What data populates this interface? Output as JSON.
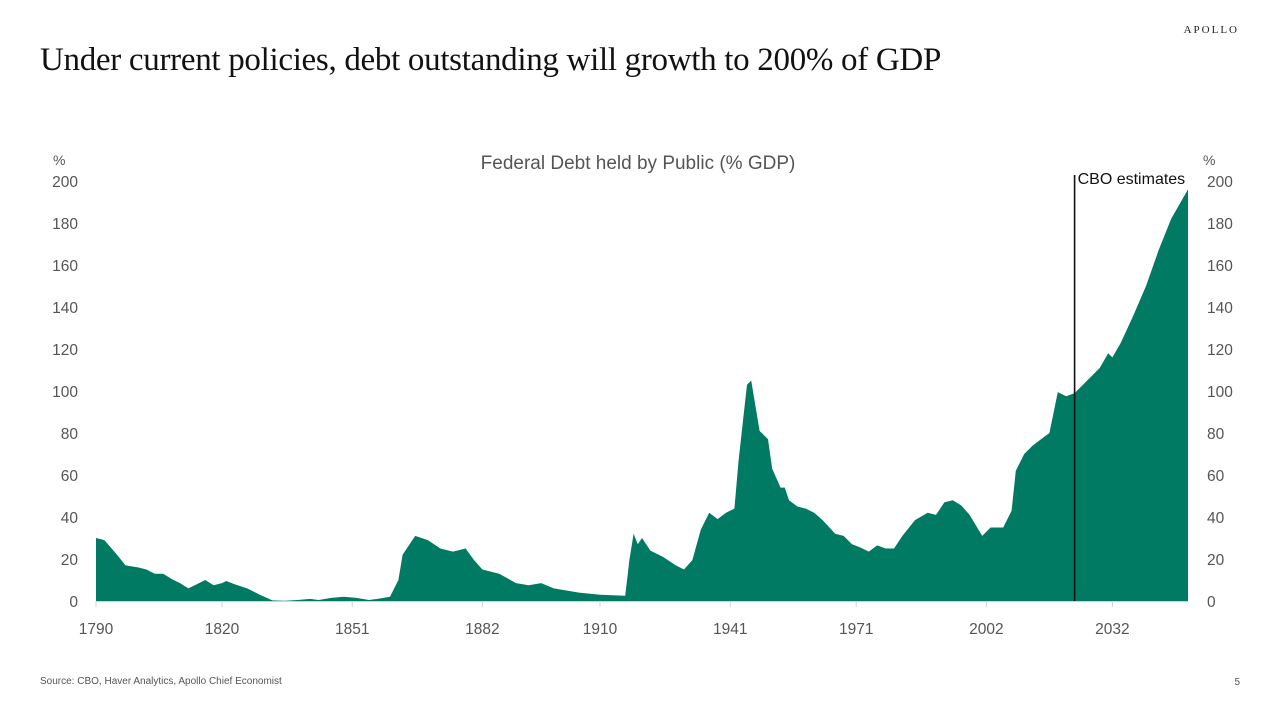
{
  "header": {
    "logo": "APOLLO",
    "title": "Under current policies, debt outstanding will growth to 200% of GDP"
  },
  "footer": {
    "source": "Source: CBO, Haver Analytics, Apollo Chief Economist",
    "page_number": "5"
  },
  "colors": {
    "area_fill": "#007A63",
    "annotation_line": "#111111"
  },
  "chart_data": {
    "type": "area",
    "title": "Federal Debt held by Public (% GDP)",
    "xlabel": "",
    "ylabel": "%",
    "ylabel_right": "%",
    "xlim": [
      1790,
      2050
    ],
    "ylim": [
      0,
      200
    ],
    "x_ticks": [
      1790,
      1820,
      1851,
      1882,
      1910,
      1941,
      1971,
      2002,
      2032
    ],
    "x_tick_labels": [
      "1790",
      "1820",
      "1851",
      "1882",
      "1910",
      "1941",
      "1971",
      "2002",
      "2032"
    ],
    "y_ticks": [
      0,
      20,
      40,
      60,
      80,
      100,
      120,
      140,
      160,
      180,
      200
    ],
    "y_tick_labels": [
      "0",
      "20",
      "40",
      "60",
      "80",
      "100",
      "120",
      "140",
      "160",
      "180",
      "200"
    ],
    "grid": false,
    "legend": "none",
    "annotations": [
      {
        "type": "vline",
        "x": 2023,
        "label": "CBO estimates"
      }
    ],
    "series": [
      {
        "name": "Federal Debt held by Public (% GDP)",
        "x": [
          1790,
          1792,
          1795,
          1797,
          1800,
          1802,
          1804,
          1806,
          1808,
          1810,
          1812,
          1814,
          1816,
          1818,
          1820,
          1821,
          1823,
          1826,
          1829,
          1832,
          1835,
          1838,
          1841,
          1843,
          1846,
          1849,
          1852,
          1855,
          1857,
          1860,
          1862,
          1863,
          1866,
          1869,
          1872,
          1875,
          1878,
          1880,
          1882,
          1886,
          1890,
          1893,
          1896,
          1899,
          1905,
          1910,
          1916,
          1917,
          1918,
          1919,
          1920,
          1922,
          1925,
          1928,
          1930,
          1932,
          1934,
          1936,
          1938,
          1940,
          1942,
          1943,
          1945,
          1946,
          1948,
          1950,
          1951,
          1953,
          1954,
          1955,
          1957,
          1959,
          1961,
          1963,
          1966,
          1968,
          1970,
          1972,
          1974,
          1976,
          1978,
          1980,
          1982,
          1985,
          1988,
          1990,
          1992,
          1994,
          1996,
          1998,
          2001,
          2003,
          2006,
          2008,
          2009,
          2011,
          2013,
          2015,
          2017,
          2019,
          2021,
          2023,
          2026,
          2029,
          2031,
          2032,
          2034,
          2037,
          2040,
          2043,
          2046,
          2050
        ],
        "values": [
          30,
          29,
          22,
          17,
          16,
          15,
          13,
          13,
          10.5,
          8.5,
          6,
          8,
          10,
          7.5,
          8.5,
          9.5,
          8,
          6,
          3,
          0.3,
          0.1,
          0.5,
          1,
          0.5,
          1.5,
          2,
          1.5,
          0.5,
          1,
          2,
          10,
          22,
          31,
          29,
          25,
          23.5,
          25,
          19.5,
          15,
          13,
          8.5,
          7.5,
          8.5,
          6,
          4,
          3,
          2.5,
          19.5,
          32,
          27,
          30,
          24,
          21,
          17,
          15,
          19.5,
          34,
          42,
          39,
          42,
          44,
          67,
          103,
          105,
          81,
          77,
          63,
          54,
          54,
          48,
          45,
          44,
          42,
          38.5,
          32,
          31,
          27,
          25.5,
          23.5,
          26.5,
          25,
          25,
          31,
          38.5,
          42,
          41,
          47,
          48,
          45.5,
          41,
          31,
          35,
          35,
          43,
          62,
          70,
          74,
          77,
          80,
          99.5,
          97.5,
          99,
          105,
          111,
          118,
          116,
          123,
          136,
          150,
          167,
          182,
          196
        ]
      }
    ]
  }
}
